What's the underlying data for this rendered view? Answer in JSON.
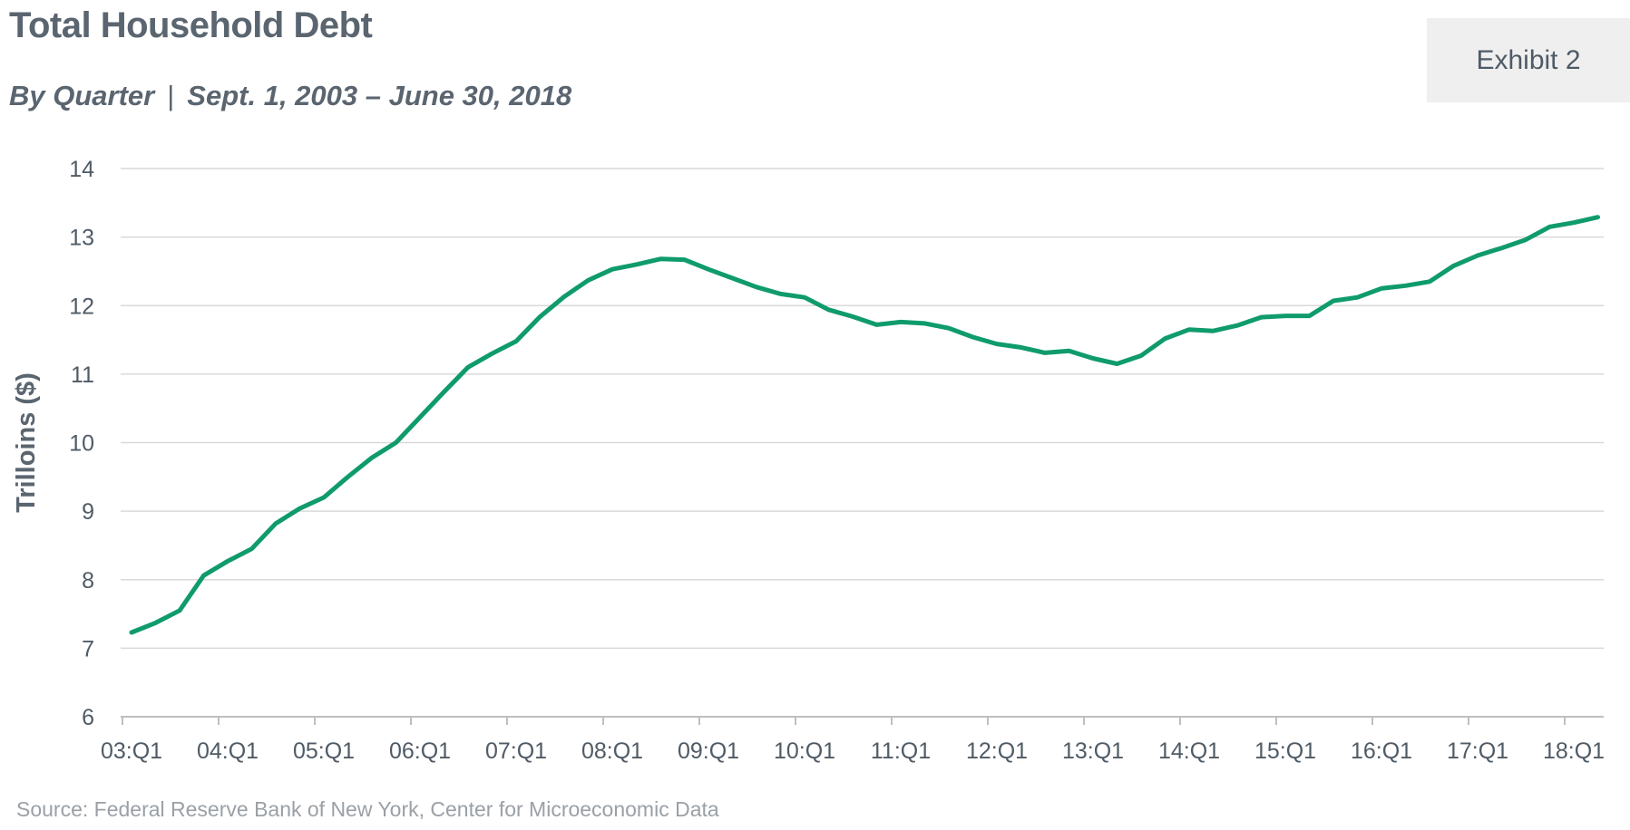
{
  "header": {
    "title": "Total Household Debt",
    "subtitle_left": "By Quarter",
    "subtitle_sep": "|",
    "subtitle_right": "Sept. 1, 2003 – June 30, 2018",
    "badge": "Exhibit 2"
  },
  "footer": {
    "source": "Source: Federal Reserve Bank of New York, Center for Microeconomic Data"
  },
  "colors": {
    "line": "#0f9b6b",
    "grid": "#d9d9d9",
    "axis": "#bfbfbf"
  },
  "chart_data": {
    "type": "line",
    "ylabel": "Trilloins ($)",
    "ylim": [
      6,
      14
    ],
    "yticks": [
      "6",
      "7",
      "8",
      "9",
      "10",
      "11",
      "12",
      "13",
      "14"
    ],
    "xtick_labels": [
      "03:Q1",
      "04:Q1",
      "05:Q1",
      "06:Q1",
      "07:Q1",
      "08:Q1",
      "09:Q1",
      "10:Q1",
      "11:Q1",
      "12:Q1",
      "13:Q1",
      "14:Q1",
      "15:Q1",
      "16:Q1",
      "17:Q1",
      "18:Q1"
    ],
    "grid": true,
    "legend": "none",
    "series": [
      {
        "x": [
          "03:Q1",
          "03:Q2",
          "03:Q3",
          "03:Q4",
          "04:Q1",
          "04:Q2",
          "04:Q3",
          "04:Q4",
          "05:Q1",
          "05:Q2",
          "05:Q3",
          "05:Q4",
          "06:Q1",
          "06:Q2",
          "06:Q3",
          "06:Q4",
          "07:Q1",
          "07:Q2",
          "07:Q3",
          "07:Q4",
          "08:Q1",
          "08:Q2",
          "08:Q3",
          "08:Q4",
          "09:Q1",
          "09:Q2",
          "09:Q3",
          "09:Q4",
          "10:Q1",
          "10:Q2",
          "10:Q3",
          "10:Q4",
          "11:Q1",
          "11:Q2",
          "11:Q3",
          "11:Q4",
          "12:Q1",
          "12:Q2",
          "12:Q3",
          "12:Q4",
          "13:Q1",
          "13:Q2",
          "13:Q3",
          "13:Q4",
          "14:Q1",
          "14:Q2",
          "14:Q3",
          "14:Q4",
          "15:Q1",
          "15:Q2",
          "15:Q3",
          "15:Q4",
          "16:Q1",
          "16:Q2",
          "16:Q3",
          "16:Q4",
          "17:Q1",
          "17:Q2",
          "17:Q3",
          "17:Q4",
          "18:Q1",
          "18:Q2"
        ],
        "values": [
          7.23,
          7.37,
          7.55,
          8.06,
          8.27,
          8.45,
          8.82,
          9.04,
          9.2,
          9.5,
          9.78,
          10.0,
          10.37,
          10.74,
          11.1,
          11.3,
          11.48,
          11.84,
          12.13,
          12.37,
          12.53,
          12.6,
          12.68,
          12.67,
          12.53,
          12.4,
          12.27,
          12.17,
          12.12,
          11.94,
          11.84,
          11.72,
          11.76,
          11.74,
          11.67,
          11.54,
          11.44,
          11.39,
          11.31,
          11.34,
          11.23,
          11.15,
          11.27,
          11.52,
          11.65,
          11.63,
          11.71,
          11.83,
          11.85,
          11.85,
          12.07,
          12.12,
          12.25,
          12.29,
          12.35,
          12.58,
          12.73,
          12.84,
          12.96,
          13.15,
          13.21,
          13.29
        ]
      }
    ]
  }
}
